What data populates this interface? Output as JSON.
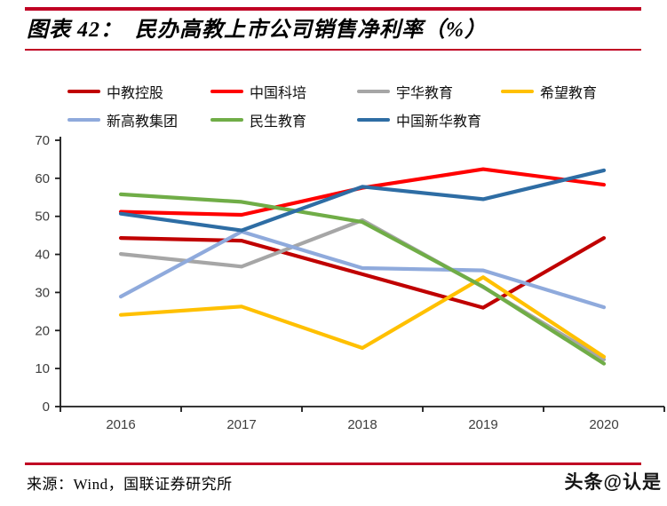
{
  "header": {
    "title": "图表 42：  民办高教上市公司销售净利率（%）"
  },
  "chart_data": {
    "type": "line",
    "title": "民办高教上市公司销售净利率（%）",
    "categories": [
      "2016",
      "2017",
      "2018",
      "2019",
      "2020"
    ],
    "series": [
      {
        "name": "中教控股",
        "color": "#C00000",
        "values": [
          44.3,
          43.6,
          34.8,
          26.0,
          44.3
        ]
      },
      {
        "name": "中国科培",
        "color": "#FF0000",
        "values": [
          51.2,
          50.4,
          57.5,
          62.4,
          58.3
        ]
      },
      {
        "name": "宇华教育",
        "color": "#A6A6A6",
        "values": [
          40.1,
          36.8,
          49.0,
          31.4,
          12.4
        ]
      },
      {
        "name": "希望教育",
        "color": "#FFC000",
        "values": [
          24.1,
          26.3,
          15.4,
          34.0,
          13.1
        ]
      },
      {
        "name": "新高教集团",
        "color": "#8FAADC",
        "values": [
          28.9,
          46.0,
          36.4,
          35.8,
          26.1
        ]
      },
      {
        "name": "民生教育",
        "color": "#70AD47",
        "values": [
          55.8,
          53.8,
          48.5,
          31.5,
          11.3
        ]
      },
      {
        "name": "中国新华教育",
        "color": "#2E6DA4",
        "values": [
          50.7,
          46.3,
          57.8,
          54.5,
          62.1
        ]
      }
    ],
    "ylim": [
      0,
      70
    ],
    "ytick_step": 10,
    "grid": false,
    "legend_position": "top"
  },
  "footer": {
    "source": "来源：Wind，国联证券研究所",
    "watermark": "头条@认是"
  },
  "theme": {
    "rule_color": "#C00023",
    "axis_color": "#1a1a1a",
    "tick_label_color": "#3d3d3d",
    "background": "#FFFFFF"
  }
}
